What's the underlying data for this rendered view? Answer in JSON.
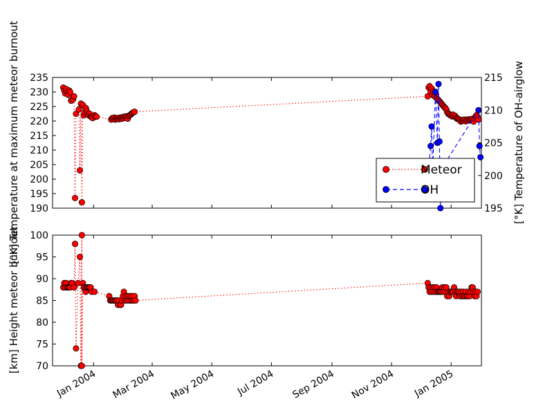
{
  "chart_data": [
    {
      "type": "line",
      "panel": "top",
      "ylabel": "[°K] Temperature at maximum meteor burnout",
      "ylabel2": "[°K] Temperature of OH-airglow",
      "ylim": [
        190,
        235
      ],
      "ylim2": [
        195,
        215
      ],
      "yticks": [
        "190",
        "195",
        "200",
        "205",
        "210",
        "215",
        "220",
        "225",
        "230",
        "235"
      ],
      "yticks2": [
        "195",
        "200",
        "205",
        "210",
        "215"
      ],
      "legend_position": "lower-right",
      "series": [
        {
          "name": "Meteor",
          "color": "#ff0000",
          "marker": "circle",
          "linestyle": "dotted",
          "axis": "left",
          "points": [
            [
              "2003-12-01",
              231.5
            ],
            [
              "2003-12-02",
              230.5
            ],
            [
              "2003-12-03",
              229.5
            ],
            [
              "2003-12-04",
              231
            ],
            [
              "2003-12-05",
              230
            ],
            [
              "2003-12-06",
              229
            ],
            [
              "2003-12-07",
              230.5
            ],
            [
              "2003-12-08",
              230
            ],
            [
              "2003-12-09",
              227
            ],
            [
              "2003-12-11",
              227.5
            ],
            [
              "2003-12-12",
              228.5
            ],
            [
              "2003-12-13",
              193.5
            ],
            [
              "2003-12-14",
              222.5
            ],
            [
              "2003-12-17",
              224
            ],
            [
              "2003-12-18",
              203
            ],
            [
              "2003-12-19",
              226
            ],
            [
              "2003-12-20",
              192
            ],
            [
              "2003-12-21",
              225.5
            ],
            [
              "2003-12-22",
              222
            ],
            [
              "2003-12-23",
              223
            ],
            [
              "2003-12-24",
              224.5
            ],
            [
              "2003-12-25",
              223.5
            ],
            [
              "2003-12-26",
              222.5
            ],
            [
              "2003-12-27",
              222
            ],
            [
              "2003-12-28",
              222.5
            ],
            [
              "2003-12-29",
              221.5
            ],
            [
              "2003-12-30",
              221.5
            ],
            [
              "2003-12-31",
              221
            ],
            [
              "2004-01-02",
              222
            ],
            [
              "2004-01-03",
              221.5
            ],
            [
              "2004-01-04",
              221.5
            ],
            [
              "2004-01-19",
              220.5
            ],
            [
              "2004-01-20",
              221
            ],
            [
              "2004-01-21",
              220.8
            ],
            [
              "2004-01-22",
              221.2
            ],
            [
              "2004-01-23",
              220.5
            ],
            [
              "2004-01-24",
              221
            ],
            [
              "2004-01-25",
              220.8
            ],
            [
              "2004-01-26",
              221
            ],
            [
              "2004-01-27",
              220.6
            ],
            [
              "2004-01-28",
              221.2
            ],
            [
              "2004-01-29",
              221
            ],
            [
              "2004-01-30",
              220.8
            ],
            [
              "2004-01-31",
              221.4
            ],
            [
              "2004-02-01",
              221
            ],
            [
              "2004-02-02",
              221.5
            ],
            [
              "2004-02-03",
              221.6
            ],
            [
              "2004-02-04",
              221.2
            ],
            [
              "2004-02-05",
              220.8
            ],
            [
              "2004-02-06",
              221.8
            ],
            [
              "2004-02-07",
              222
            ],
            [
              "2004-02-08",
              222.2
            ],
            [
              "2004-02-09",
              222.6
            ],
            [
              "2004-02-10",
              222.8
            ],
            [
              "2004-02-11",
              223
            ],
            [
              "2004-02-12",
              223.2
            ],
            [
              "2004-12-08",
              228.5
            ],
            [
              "2004-12-09",
              231.5
            ],
            [
              "2004-12-10",
              232
            ],
            [
              "2004-12-11",
              230
            ],
            [
              "2004-12-12",
              231.2
            ],
            [
              "2004-12-13",
              229
            ],
            [
              "2004-12-14",
              230.2
            ],
            [
              "2004-12-15",
              228.5
            ],
            [
              "2004-12-16",
              229.2
            ],
            [
              "2004-12-17",
              228
            ],
            [
              "2004-12-18",
              227.5
            ],
            [
              "2004-12-19",
              227.2
            ],
            [
              "2004-12-20",
              226.8
            ],
            [
              "2004-12-21",
              226.4
            ],
            [
              "2004-12-22",
              226
            ],
            [
              "2004-12-23",
              225.6
            ],
            [
              "2004-12-24",
              225.2
            ],
            [
              "2004-12-25",
              224.8
            ],
            [
              "2004-12-26",
              224.5
            ],
            [
              "2004-12-27",
              224
            ],
            [
              "2004-12-28",
              223
            ],
            [
              "2004-12-29",
              222.5
            ],
            [
              "2004-12-30",
              222.4
            ],
            [
              "2004-12-31",
              222
            ],
            [
              "2005-01-01",
              221.8
            ],
            [
              "2005-01-02",
              221.6
            ],
            [
              "2005-01-03",
              222.2
            ],
            [
              "2005-01-04",
              221.6
            ],
            [
              "2005-01-05",
              221.8
            ],
            [
              "2005-01-06",
              221.2
            ],
            [
              "2005-01-07",
              220.8
            ],
            [
              "2005-01-08",
              220.8
            ],
            [
              "2005-01-09",
              220.6
            ],
            [
              "2005-01-10",
              220.2
            ],
            [
              "2005-01-11",
              219.8
            ],
            [
              "2005-01-12",
              220.2
            ],
            [
              "2005-01-13",
              220.4
            ],
            [
              "2005-01-14",
              220.1
            ],
            [
              "2005-01-15",
              220.5
            ],
            [
              "2005-01-16",
              219.9
            ],
            [
              "2005-01-17",
              220.4
            ],
            [
              "2005-01-18",
              220.2
            ],
            [
              "2005-01-19",
              220.6
            ],
            [
              "2005-01-20",
              220.3
            ],
            [
              "2005-01-21",
              220.5
            ],
            [
              "2005-01-22",
              220.7
            ],
            [
              "2005-01-23",
              220.2
            ],
            [
              "2005-01-24",
              219.8
            ],
            [
              "2005-01-25",
              220.9
            ],
            [
              "2005-01-26",
              221.6
            ],
            [
              "2005-01-27",
              222
            ],
            [
              "2005-01-28",
              221.5
            ],
            [
              "2005-01-29",
              220.5
            ]
          ]
        },
        {
          "name": "OH",
          "color": "#0000ff",
          "marker": "circle",
          "linestyle": "dashed",
          "axis": "right",
          "points": [
            [
              "2004-12-08",
              199.5
            ],
            [
              "2004-12-11",
              204.5
            ],
            [
              "2004-12-12",
              207.5
            ],
            [
              "2004-12-13",
              200.5
            ],
            [
              "2004-12-16",
              212.8
            ],
            [
              "2004-12-18",
              205
            ],
            [
              "2004-12-19",
              214
            ],
            [
              "2004-12-20",
              205.2
            ],
            [
              "2004-12-21",
              195
            ],
            [
              "2004-12-22",
              201
            ],
            [
              "2005-01-29",
              210
            ],
            [
              "2005-01-30",
              204.5
            ],
            [
              "2005-01-31",
              202.8
            ]
          ]
        }
      ]
    },
    {
      "type": "line",
      "panel": "bottom",
      "ylabel": "[km] Height meteor burnout",
      "ylim": [
        70,
        100
      ],
      "yticks": [
        "70",
        "75",
        "80",
        "85",
        "90",
        "95",
        "100"
      ],
      "series": [
        {
          "name": "Meteor",
          "color": "#ff0000",
          "marker": "circle",
          "linestyle": "dotted",
          "points": [
            [
              "2003-12-01",
              88
            ],
            [
              "2003-12-02",
              89
            ],
            [
              "2003-12-03",
              88
            ],
            [
              "2003-12-04",
              89
            ],
            [
              "2003-12-05",
              88
            ],
            [
              "2003-12-06",
              88
            ],
            [
              "2003-12-07",
              88
            ],
            [
              "2003-12-08",
              88
            ],
            [
              "2003-12-09",
              89
            ],
            [
              "2003-12-10",
              89
            ],
            [
              "2003-12-12",
              88
            ],
            [
              "2003-12-13",
              98
            ],
            [
              "2003-12-14",
              74
            ],
            [
              "2003-12-16",
              89
            ],
            [
              "2003-12-18",
              95
            ],
            [
              "2003-12-19",
              70
            ],
            [
              "2003-12-20",
              100
            ],
            [
              "2003-12-20",
              70
            ],
            [
              "2003-12-21",
              89
            ],
            [
              "2003-12-22",
              88
            ],
            [
              "2003-12-23",
              88
            ],
            [
              "2003-12-24",
              87
            ],
            [
              "2003-12-25",
              88
            ],
            [
              "2003-12-26",
              88
            ],
            [
              "2003-12-27",
              88
            ],
            [
              "2003-12-28",
              88
            ],
            [
              "2003-12-29",
              88
            ],
            [
              "2003-12-30",
              87
            ],
            [
              "2004-01-02",
              87
            ],
            [
              "2004-01-17",
              86
            ],
            [
              "2004-01-18",
              85
            ],
            [
              "2004-01-19",
              85
            ],
            [
              "2004-01-20",
              85
            ],
            [
              "2004-01-21",
              85
            ],
            [
              "2004-01-22",
              85
            ],
            [
              "2004-01-23",
              85
            ],
            [
              "2004-01-24",
              85
            ],
            [
              "2004-01-25",
              85
            ],
            [
              "2004-01-26",
              84
            ],
            [
              "2004-01-27",
              85
            ],
            [
              "2004-01-28",
              84
            ],
            [
              "2004-01-29",
              84
            ],
            [
              "2004-01-30",
              85
            ],
            [
              "2004-01-31",
              86
            ],
            [
              "2004-02-01",
              87
            ],
            [
              "2004-02-02",
              85
            ],
            [
              "2004-02-03",
              86
            ],
            [
              "2004-02-04",
              85
            ],
            [
              "2004-02-05",
              86
            ],
            [
              "2004-02-06",
              85
            ],
            [
              "2004-02-07",
              86
            ],
            [
              "2004-02-08",
              85
            ],
            [
              "2004-02-09",
              86
            ],
            [
              "2004-02-10",
              85
            ],
            [
              "2004-02-11",
              85
            ],
            [
              "2004-02-12",
              86
            ],
            [
              "2004-02-13",
              85
            ],
            [
              "2004-12-08",
              89
            ],
            [
              "2004-12-09",
              88
            ],
            [
              "2004-12-10",
              87
            ],
            [
              "2004-12-11",
              88
            ],
            [
              "2004-12-12",
              87
            ],
            [
              "2004-12-13",
              88
            ],
            [
              "2004-12-14",
              87
            ],
            [
              "2004-12-15",
              88
            ],
            [
              "2004-12-16",
              87
            ],
            [
              "2004-12-17",
              88
            ],
            [
              "2004-12-18",
              87
            ],
            [
              "2004-12-19",
              87
            ],
            [
              "2004-12-20",
              87
            ],
            [
              "2004-12-21",
              87
            ],
            [
              "2004-12-22",
              87
            ],
            [
              "2004-12-23",
              88
            ],
            [
              "2004-12-24",
              87
            ],
            [
              "2004-12-25",
              88
            ],
            [
              "2004-12-26",
              87
            ],
            [
              "2004-12-27",
              88
            ],
            [
              "2004-12-28",
              86
            ],
            [
              "2004-12-29",
              87
            ],
            [
              "2004-12-30",
              86
            ],
            [
              "2004-12-31",
              87
            ],
            [
              "2005-01-01",
              87
            ],
            [
              "2005-01-02",
              87
            ],
            [
              "2005-01-03",
              87
            ],
            [
              "2005-01-04",
              88
            ],
            [
              "2005-01-05",
              87
            ],
            [
              "2005-01-06",
              86
            ],
            [
              "2005-01-07",
              87
            ],
            [
              "2005-01-08",
              87
            ],
            [
              "2005-01-09",
              87
            ],
            [
              "2005-01-10",
              86
            ],
            [
              "2005-01-11",
              87
            ],
            [
              "2005-01-12",
              86
            ],
            [
              "2005-01-13",
              87
            ],
            [
              "2005-01-14",
              86
            ],
            [
              "2005-01-15",
              86
            ],
            [
              "2005-01-16",
              87
            ],
            [
              "2005-01-17",
              86
            ],
            [
              "2005-01-18",
              86
            ],
            [
              "2005-01-19",
              87
            ],
            [
              "2005-01-20",
              86
            ],
            [
              "2005-01-21",
              87
            ],
            [
              "2005-01-22",
              88
            ],
            [
              "2005-01-23",
              88
            ],
            [
              "2005-01-24",
              87
            ],
            [
              "2005-01-25",
              86
            ],
            [
              "2005-01-26",
              87
            ],
            [
              "2005-01-27",
              86
            ],
            [
              "2005-01-28",
              87
            ]
          ]
        }
      ]
    }
  ],
  "x_axis": {
    "xlim": [
      "2003-11-20",
      "2005-02-01"
    ],
    "ticks": [
      {
        "date": "2004-01-01",
        "label": "Jan 2004"
      },
      {
        "date": "2004-03-01",
        "label": "Mar 2004"
      },
      {
        "date": "2004-05-01",
        "label": "May 2004"
      },
      {
        "date": "2004-07-01",
        "label": "Jul 2004"
      },
      {
        "date": "2004-09-01",
        "label": "Sep 2004"
      },
      {
        "date": "2004-11-01",
        "label": "Nov 2004"
      },
      {
        "date": "2005-01-01",
        "label": "Jan 2005"
      }
    ]
  }
}
